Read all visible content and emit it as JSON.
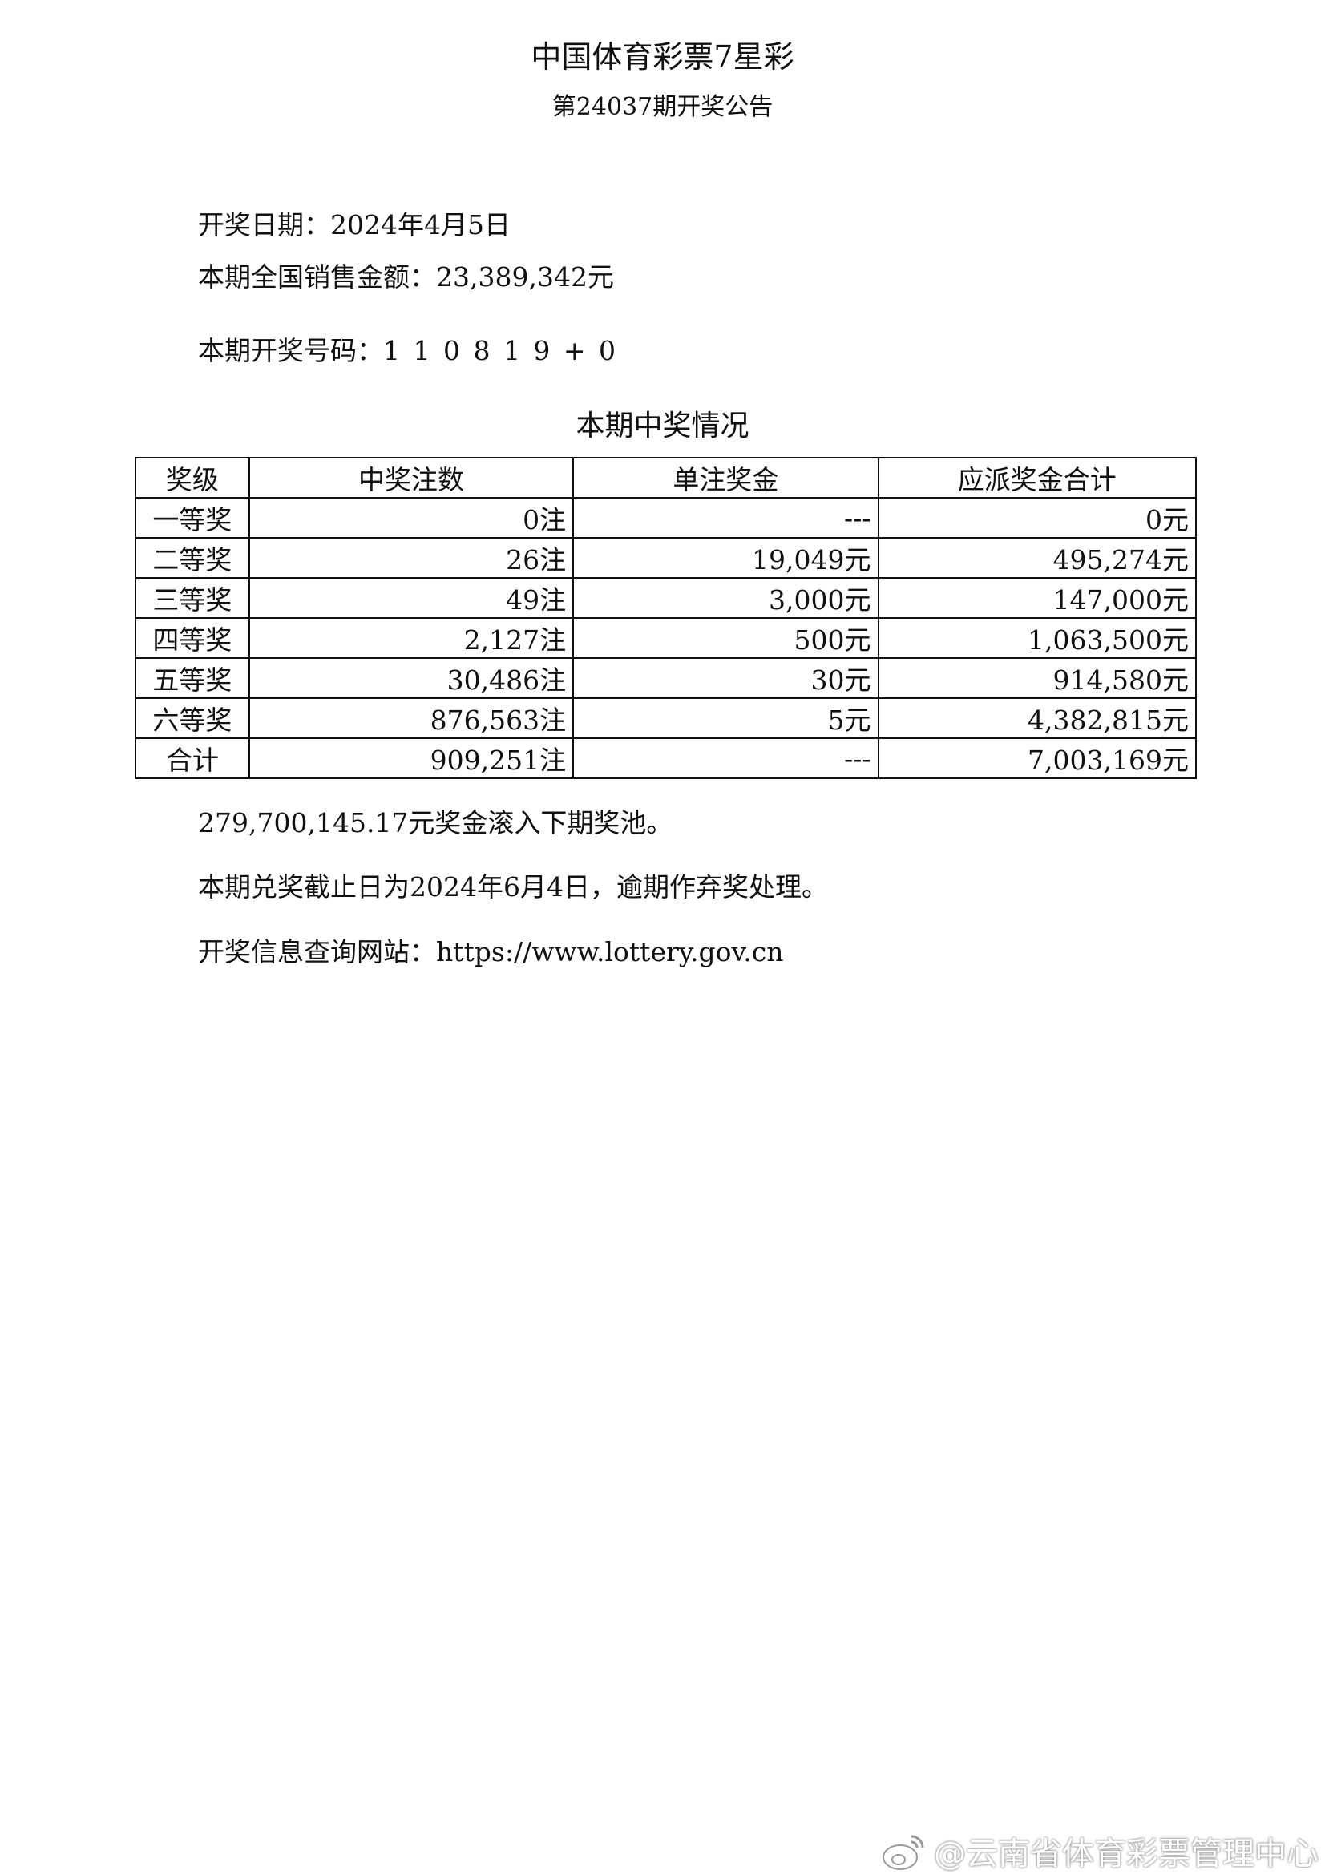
{
  "header": {
    "title": "中国体育彩票7星彩",
    "subtitle": "第24037期开奖公告"
  },
  "info": {
    "draw_date": "开奖日期：2024年4月5日",
    "sales": "本期全国销售金额：23,389,342元",
    "numbers": "本期开奖号码：1 1 0 8 1 9 + 0"
  },
  "section_title": "本期中奖情况",
  "table": {
    "headers": [
      "奖级",
      "中奖注数",
      "单注奖金",
      "应派奖金合计"
    ],
    "rows": [
      [
        "一等奖",
        "0注",
        "---",
        "0元"
      ],
      [
        "二等奖",
        "26注",
        "19,049元",
        "495,274元"
      ],
      [
        "三等奖",
        "49注",
        "3,000元",
        "147,000元"
      ],
      [
        "四等奖",
        "2,127注",
        "500元",
        "1,063,500元"
      ],
      [
        "五等奖",
        "30,486注",
        "30元",
        "914,580元"
      ],
      [
        "六等奖",
        "876,563注",
        "5元",
        "4,382,815元"
      ],
      [
        "合计",
        "909,251注",
        "---",
        "7,003,169元"
      ]
    ]
  },
  "footer": {
    "rollover": "279,700,145.17元奖金滚入下期奖池。",
    "deadline": "本期兑奖截止日为2024年6月4日，逾期作弃奖处理。",
    "website": "开奖信息查询网站：https://www.lottery.gov.cn"
  },
  "watermark": {
    "icon": "weibo-icon",
    "text": "@云南省体育彩票管理中心"
  }
}
